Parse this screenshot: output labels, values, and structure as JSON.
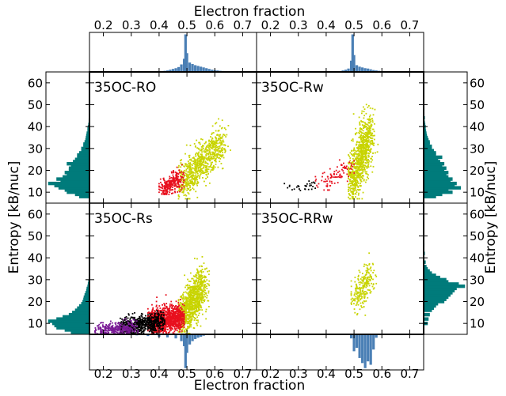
{
  "chart_data": {
    "type": "scatter",
    "x_axis": {
      "label": "Electron fraction",
      "range": [
        0.15,
        0.75
      ],
      "ticks": [
        0.2,
        0.3,
        0.4,
        0.5,
        0.6,
        0.7
      ],
      "tick_labels": [
        "0.2",
        "0.3",
        "0.4",
        "0.5",
        "0.6",
        "0.7"
      ]
    },
    "y_axis": {
      "label": "Entropy [kB/nuc]",
      "range": [
        5,
        65
      ],
      "ticks": [
        10,
        20,
        30,
        40,
        50,
        60
      ],
      "tick_labels": [
        "10",
        "20",
        "30",
        "40",
        "50",
        "60"
      ]
    },
    "colors": {
      "yellow": "#c8d400",
      "red": "#e8101e",
      "black": "#000000",
      "purple": "#7a1a96",
      "hist_blue": "#4a7fb5",
      "hist_teal": "#007b7b"
    },
    "panels": [
      {
        "label": "35OC-RO",
        "position": "top-left",
        "clusters": [
          {
            "color": "yellow",
            "n": 750,
            "x_range": [
              0.47,
              0.66
            ],
            "y_range": [
              7,
              45
            ],
            "line": {
              "x0": 0.48,
              "y0": 14,
              "x1": 0.63,
              "y1": 33
            },
            "spread": 4.5
          },
          {
            "color": "red",
            "n": 260,
            "x_range": [
              0.4,
              0.49
            ],
            "y_range": [
              9,
              23
            ],
            "line": {
              "x0": 0.41,
              "y0": 11,
              "x1": 0.48,
              "y1": 17
            },
            "spread": 2.2
          }
        ]
      },
      {
        "label": "35OC-Rw",
        "position": "top-right",
        "clusters": [
          {
            "color": "yellow",
            "n": 850,
            "x_range": [
              0.48,
              0.61
            ],
            "y_range": [
              7,
              63
            ],
            "line": {
              "x0": 0.49,
              "y0": 14,
              "x1": 0.56,
              "y1": 38
            },
            "spread": 6.0
          },
          {
            "color": "red",
            "n": 90,
            "x_range": [
              0.35,
              0.5
            ],
            "y_range": [
              11,
              33
            ],
            "line": {
              "x0": 0.38,
              "y0": 13,
              "x1": 0.49,
              "y1": 22
            },
            "spread": 2.5
          },
          {
            "color": "black",
            "n": 30,
            "x_range": [
              0.25,
              0.38
            ],
            "y_range": [
              10,
              16
            ],
            "line": {
              "x0": 0.26,
              "y0": 12,
              "x1": 0.37,
              "y1": 13
            },
            "spread": 1.2
          }
        ]
      },
      {
        "label": "35OC-Rs",
        "position": "bottom-left",
        "clusters": [
          {
            "color": "yellow",
            "n": 950,
            "x_range": [
              0.47,
              0.58
            ],
            "y_range": [
              5,
              50
            ],
            "line": {
              "x0": 0.48,
              "y0": 12,
              "x1": 0.56,
              "y1": 28
            },
            "spread": 5.0
          },
          {
            "color": "red",
            "n": 1100,
            "x_range": [
              0.36,
              0.49
            ],
            "y_range": [
              5,
              36
            ],
            "line": {
              "x0": 0.37,
              "y0": 10,
              "x1": 0.48,
              "y1": 13
            },
            "spread": 3.0
          },
          {
            "color": "black",
            "n": 650,
            "x_range": [
              0.26,
              0.42
            ],
            "y_range": [
              5,
              30
            ],
            "line": {
              "x0": 0.27,
              "y0": 8,
              "x1": 0.41,
              "y1": 11
            },
            "spread": 2.2
          },
          {
            "color": "purple",
            "n": 320,
            "x_range": [
              0.17,
              0.33
            ],
            "y_range": [
              5,
              27
            ],
            "line": {
              "x0": 0.18,
              "y0": 7,
              "x1": 0.31,
              "y1": 8
            },
            "spread": 1.4
          }
        ]
      },
      {
        "label": "35OC-RRw",
        "position": "bottom-right",
        "clusters": [
          {
            "color": "yellow",
            "n": 240,
            "x_range": [
              0.49,
              0.58
            ],
            "y_range": [
              7,
              50
            ],
            "line": {
              "x0": 0.5,
              "y0": 20,
              "x1": 0.56,
              "y1": 32
            },
            "spread": 3.5
          }
        ]
      }
    ],
    "histograms": {
      "top_left": {
        "orientation": "up",
        "color": "hist_blue",
        "bins": [
          {
            "x": 0.42,
            "h": 0.03
          },
          {
            "x": 0.43,
            "h": 0.04
          },
          {
            "x": 0.44,
            "h": 0.06
          },
          {
            "x": 0.45,
            "h": 0.08
          },
          {
            "x": 0.46,
            "h": 0.1
          },
          {
            "x": 0.47,
            "h": 0.13
          },
          {
            "x": 0.48,
            "h": 0.2
          },
          {
            "x": 0.49,
            "h": 0.35
          },
          {
            "x": 0.495,
            "h": 1.0
          },
          {
            "x": 0.5,
            "h": 0.5
          },
          {
            "x": 0.51,
            "h": 0.25
          },
          {
            "x": 0.52,
            "h": 0.21
          },
          {
            "x": 0.53,
            "h": 0.18
          },
          {
            "x": 0.54,
            "h": 0.16
          },
          {
            "x": 0.55,
            "h": 0.14
          },
          {
            "x": 0.56,
            "h": 0.12
          },
          {
            "x": 0.57,
            "h": 0.1
          },
          {
            "x": 0.58,
            "h": 0.08
          },
          {
            "x": 0.59,
            "h": 0.06
          },
          {
            "x": 0.6,
            "h": 0.05
          },
          {
            "x": 0.61,
            "h": 0.04
          },
          {
            "x": 0.62,
            "h": 0.03
          },
          {
            "x": 0.63,
            "h": 0.025
          },
          {
            "x": 0.64,
            "h": 0.02
          },
          {
            "x": 0.65,
            "h": 0.015
          },
          {
            "x": 0.66,
            "h": 0.01
          }
        ]
      },
      "top_right": {
        "orientation": "up",
        "color": "hist_blue",
        "bins": [
          {
            "x": 0.46,
            "h": 0.04
          },
          {
            "x": 0.47,
            "h": 0.06
          },
          {
            "x": 0.48,
            "h": 0.09
          },
          {
            "x": 0.49,
            "h": 0.3
          },
          {
            "x": 0.495,
            "h": 1.0
          },
          {
            "x": 0.5,
            "h": 0.45
          },
          {
            "x": 0.51,
            "h": 0.18
          },
          {
            "x": 0.52,
            "h": 0.14
          },
          {
            "x": 0.53,
            "h": 0.12
          },
          {
            "x": 0.54,
            "h": 0.1
          },
          {
            "x": 0.55,
            "h": 0.09
          },
          {
            "x": 0.56,
            "h": 0.07
          },
          {
            "x": 0.57,
            "h": 0.05
          },
          {
            "x": 0.58,
            "h": 0.04
          },
          {
            "x": 0.59,
            "h": 0.03
          },
          {
            "x": 0.6,
            "h": 0.02
          }
        ]
      },
      "bottom_left": {
        "orientation": "down",
        "color": "hist_blue",
        "bins": [
          {
            "x": 0.2,
            "h": 0.01
          },
          {
            "x": 0.24,
            "h": 0.015
          },
          {
            "x": 0.28,
            "h": 0.02
          },
          {
            "x": 0.32,
            "h": 0.03
          },
          {
            "x": 0.36,
            "h": 0.05
          },
          {
            "x": 0.4,
            "h": 0.07
          },
          {
            "x": 0.43,
            "h": 0.09
          },
          {
            "x": 0.46,
            "h": 0.12
          },
          {
            "x": 0.48,
            "h": 0.2
          },
          {
            "x": 0.49,
            "h": 0.35
          },
          {
            "x": 0.495,
            "h": 1.0
          },
          {
            "x": 0.5,
            "h": 0.55
          },
          {
            "x": 0.51,
            "h": 0.3
          },
          {
            "x": 0.52,
            "h": 0.2
          },
          {
            "x": 0.53,
            "h": 0.14
          },
          {
            "x": 0.54,
            "h": 0.1
          },
          {
            "x": 0.55,
            "h": 0.07
          },
          {
            "x": 0.56,
            "h": 0.04
          },
          {
            "x": 0.57,
            "h": 0.02
          }
        ]
      },
      "bottom_right": {
        "orientation": "down",
        "color": "hist_blue",
        "bins": [
          {
            "x": 0.49,
            "h": 0.12
          },
          {
            "x": 0.5,
            "h": 0.5
          },
          {
            "x": 0.51,
            "h": 0.4
          },
          {
            "x": 0.52,
            "h": 0.7
          },
          {
            "x": 0.53,
            "h": 0.85
          },
          {
            "x": 0.54,
            "h": 1.0
          },
          {
            "x": 0.55,
            "h": 0.8
          },
          {
            "x": 0.56,
            "h": 0.9
          },
          {
            "x": 0.57,
            "h": 0.45
          },
          {
            "x": 0.58,
            "h": 0.1
          }
        ]
      },
      "left_top": {
        "orientation": "left",
        "color": "hist_teal",
        "bins": [
          {
            "y": 8,
            "w": 0.25
          },
          {
            "y": 9,
            "w": 0.35
          },
          {
            "y": 10,
            "w": 0.55
          },
          {
            "y": 11,
            "w": 0.6
          },
          {
            "y": 12,
            "w": 0.75
          },
          {
            "y": 13,
            "w": 0.85
          },
          {
            "y": 14,
            "w": 1.0
          },
          {
            "y": 15,
            "w": 0.7
          },
          {
            "y": 16,
            "w": 0.8
          },
          {
            "y": 17,
            "w": 0.65
          },
          {
            "y": 18,
            "w": 0.55
          },
          {
            "y": 19,
            "w": 0.6
          },
          {
            "y": 20,
            "w": 0.5
          },
          {
            "y": 21,
            "w": 0.5
          },
          {
            "y": 22,
            "w": 0.45
          },
          {
            "y": 23,
            "w": 0.55
          },
          {
            "y": 24,
            "w": 0.4
          },
          {
            "y": 25,
            "w": 0.35
          },
          {
            "y": 26,
            "w": 0.3
          },
          {
            "y": 27,
            "w": 0.3
          },
          {
            "y": 28,
            "w": 0.25
          },
          {
            "y": 29,
            "w": 0.2
          },
          {
            "y": 30,
            "w": 0.2
          },
          {
            "y": 31,
            "w": 0.15
          },
          {
            "y": 32,
            "w": 0.15
          },
          {
            "y": 33,
            "w": 0.12
          },
          {
            "y": 34,
            "w": 0.1
          },
          {
            "y": 35,
            "w": 0.09
          },
          {
            "y": 36,
            "w": 0.08
          },
          {
            "y": 37,
            "w": 0.07
          },
          {
            "y": 38,
            "w": 0.05
          },
          {
            "y": 39,
            "w": 0.05
          },
          {
            "y": 40,
            "w": 0.04
          },
          {
            "y": 41,
            "w": 0.03
          },
          {
            "y": 42,
            "w": 0.02
          },
          {
            "y": 43,
            "w": 0.02
          }
        ]
      },
      "left_bottom": {
        "orientation": "left",
        "color": "hist_teal",
        "bins": [
          {
            "y": 6,
            "w": 0.45
          },
          {
            "y": 7,
            "w": 0.6
          },
          {
            "y": 8,
            "w": 0.8
          },
          {
            "y": 9,
            "w": 0.85
          },
          {
            "y": 10,
            "w": 0.9
          },
          {
            "y": 11,
            "w": 1.0
          },
          {
            "y": 12,
            "w": 0.8
          },
          {
            "y": 13,
            "w": 0.65
          },
          {
            "y": 14,
            "w": 0.5
          },
          {
            "y": 15,
            "w": 0.42
          },
          {
            "y": 16,
            "w": 0.35
          },
          {
            "y": 17,
            "w": 0.3
          },
          {
            "y": 18,
            "w": 0.25
          },
          {
            "y": 19,
            "w": 0.2
          },
          {
            "y": 20,
            "w": 0.17
          },
          {
            "y": 21,
            "w": 0.15
          },
          {
            "y": 22,
            "w": 0.14
          },
          {
            "y": 23,
            "w": 0.12
          },
          {
            "y": 24,
            "w": 0.1
          },
          {
            "y": 25,
            "w": 0.08
          },
          {
            "y": 26,
            "w": 0.07
          },
          {
            "y": 27,
            "w": 0.05
          },
          {
            "y": 28,
            "w": 0.04
          },
          {
            "y": 29,
            "w": 0.03
          },
          {
            "y": 30,
            "w": 0.02
          }
        ]
      },
      "right_top": {
        "orientation": "right",
        "color": "hist_teal",
        "bins": [
          {
            "y": 8,
            "w": 0.3
          },
          {
            "y": 9,
            "w": 0.45
          },
          {
            "y": 10,
            "w": 0.7
          },
          {
            "y": 11,
            "w": 0.6
          },
          {
            "y": 12,
            "w": 0.9
          },
          {
            "y": 13,
            "w": 0.75
          },
          {
            "y": 14,
            "w": 0.8
          },
          {
            "y": 15,
            "w": 0.65
          },
          {
            "y": 16,
            "w": 0.7
          },
          {
            "y": 17,
            "w": 0.6
          },
          {
            "y": 18,
            "w": 0.55
          },
          {
            "y": 19,
            "w": 0.6
          },
          {
            "y": 20,
            "w": 0.5
          },
          {
            "y": 21,
            "w": 0.55
          },
          {
            "y": 22,
            "w": 0.45
          },
          {
            "y": 23,
            "w": 0.5
          },
          {
            "y": 24,
            "w": 0.4
          },
          {
            "y": 25,
            "w": 0.35
          },
          {
            "y": 26,
            "w": 0.45
          },
          {
            "y": 27,
            "w": 0.3
          },
          {
            "y": 28,
            "w": 0.3
          },
          {
            "y": 29,
            "w": 0.25
          },
          {
            "y": 30,
            "w": 0.2
          },
          {
            "y": 31,
            "w": 0.2
          },
          {
            "y": 32,
            "w": 0.15
          },
          {
            "y": 33,
            "w": 0.15
          },
          {
            "y": 34,
            "w": 0.12
          },
          {
            "y": 35,
            "w": 0.1
          },
          {
            "y": 36,
            "w": 0.08
          },
          {
            "y": 37,
            "w": 0.07
          },
          {
            "y": 38,
            "w": 0.06
          },
          {
            "y": 39,
            "w": 0.05
          },
          {
            "y": 40,
            "w": 0.05
          },
          {
            "y": 41,
            "w": 0.04
          },
          {
            "y": 42,
            "w": 0.03
          },
          {
            "y": 44,
            "w": 0.03
          },
          {
            "y": 46,
            "w": 0.02
          },
          {
            "y": 48,
            "w": 0.02
          },
          {
            "y": 52,
            "w": 0.01
          },
          {
            "y": 56,
            "w": 0.01
          }
        ]
      },
      "right_bottom": {
        "orientation": "right",
        "color": "hist_teal",
        "bins": [
          {
            "y": 10,
            "w": 0.1
          },
          {
            "y": 12,
            "w": 0.12
          },
          {
            "y": 14,
            "w": 0.15
          },
          {
            "y": 16,
            "w": 0.2
          },
          {
            "y": 17,
            "w": 0.25
          },
          {
            "y": 18,
            "w": 0.3
          },
          {
            "y": 19,
            "w": 0.35
          },
          {
            "y": 20,
            "w": 0.5
          },
          {
            "y": 21,
            "w": 0.55
          },
          {
            "y": 22,
            "w": 0.6
          },
          {
            "y": 23,
            "w": 0.65
          },
          {
            "y": 24,
            "w": 0.7
          },
          {
            "y": 25,
            "w": 0.75
          },
          {
            "y": 26,
            "w": 0.8
          },
          {
            "y": 27,
            "w": 1.0
          },
          {
            "y": 28,
            "w": 0.85
          },
          {
            "y": 29,
            "w": 0.6
          },
          {
            "y": 30,
            "w": 0.55
          },
          {
            "y": 31,
            "w": 0.4
          },
          {
            "y": 32,
            "w": 0.3
          },
          {
            "y": 33,
            "w": 0.2
          },
          {
            "y": 34,
            "w": 0.15
          },
          {
            "y": 35,
            "w": 0.1
          },
          {
            "y": 36,
            "w": 0.07
          },
          {
            "y": 38,
            "w": 0.05
          },
          {
            "y": 42,
            "w": 0.03
          },
          {
            "y": 46,
            "w": 0.02
          }
        ]
      }
    }
  }
}
